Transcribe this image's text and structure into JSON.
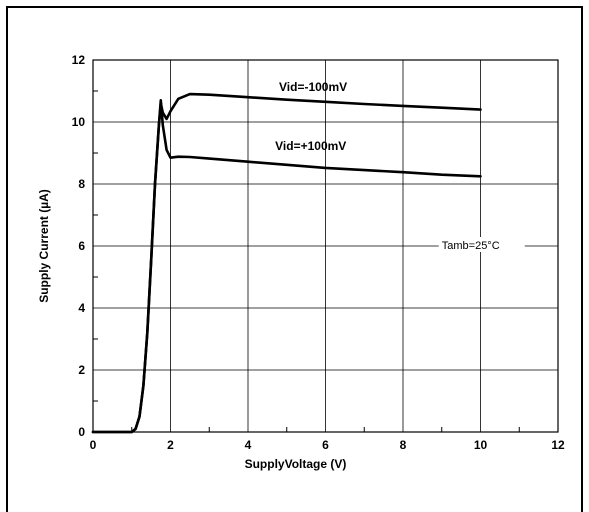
{
  "chart_data": {
    "type": "line",
    "title": "",
    "xlabel": "SupplyVoltage (V)",
    "ylabel": "Supply Current (µA)",
    "xlim": [
      0,
      12
    ],
    "ylim": [
      0,
      12
    ],
    "xticks": [
      0,
      2,
      4,
      6,
      8,
      10,
      12
    ],
    "yticks": [
      0,
      2,
      4,
      6,
      8,
      10,
      12
    ],
    "grid": true,
    "annotations": [
      {
        "text": "Vid=-100mV",
        "x": 4.8,
        "y": 11.0
      },
      {
        "text": "Vid=+100mV",
        "x": 4.7,
        "y": 9.1
      },
      {
        "text": "Tamb=25°C",
        "x": 9.0,
        "y": 6.0
      }
    ],
    "series": [
      {
        "name": "Vid=-100mV",
        "x": [
          0,
          1.0,
          1.1,
          1.2,
          1.3,
          1.4,
          1.5,
          1.6,
          1.7,
          1.75,
          1.8,
          1.9,
          2.0,
          2.2,
          2.5,
          3.0,
          4.0,
          5.0,
          6.0,
          7.0,
          8.0,
          9.0,
          10.0
        ],
        "y": [
          0,
          0,
          0.1,
          0.5,
          1.5,
          3.2,
          5.5,
          8.0,
          9.9,
          10.6,
          10.3,
          10.1,
          10.35,
          10.75,
          10.9,
          10.88,
          10.8,
          10.72,
          10.65,
          10.58,
          10.52,
          10.46,
          10.4
        ]
      },
      {
        "name": "Vid=+100mV",
        "x": [
          0,
          1.0,
          1.1,
          1.2,
          1.3,
          1.4,
          1.5,
          1.6,
          1.7,
          1.75,
          1.8,
          1.9,
          2.0,
          2.2,
          2.5,
          3.0,
          4.0,
          5.0,
          6.0,
          7.0,
          8.0,
          9.0,
          10.0
        ],
        "y": [
          0,
          0,
          0.1,
          0.5,
          1.5,
          3.2,
          5.5,
          8.0,
          9.9,
          10.7,
          9.9,
          9.1,
          8.85,
          8.88,
          8.87,
          8.82,
          8.72,
          8.62,
          8.52,
          8.45,
          8.38,
          8.3,
          8.25
        ]
      }
    ]
  }
}
